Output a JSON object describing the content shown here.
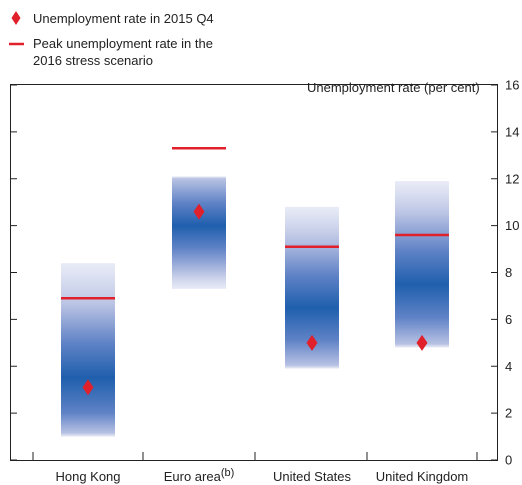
{
  "chart_data": {
    "type": "fan-range",
    "title": "",
    "ylabel": "Unemployment rate (per cent)",
    "xlabel": "",
    "ylim": [
      0,
      16
    ],
    "yticks": [
      0,
      2,
      4,
      6,
      8,
      10,
      12,
      14,
      16
    ],
    "y_axis_side": "right",
    "grid": false,
    "legend_position": "top-left",
    "legend": [
      {
        "name": "Unemployment rate in 2015 Q4",
        "marker": "diamond"
      },
      {
        "name": "Peak unemployment rate in the 2016 stress scenario",
        "marker": "line"
      }
    ],
    "categories": [
      "Hong Kong",
      "Euro area",
      "United States",
      "United Kingdom"
    ],
    "category_notes": [
      "",
      "(b)",
      "",
      ""
    ],
    "ranges": [
      {
        "low": 1.0,
        "high": 8.4,
        "dense_center": 3.5
      },
      {
        "low": 7.3,
        "high": 12.1,
        "dense_center": 10.0
      },
      {
        "low": 3.9,
        "high": 10.8,
        "dense_center": 6.5
      },
      {
        "low": 4.8,
        "high": 11.9,
        "dense_center": 7.5
      }
    ],
    "current_2015q4": [
      3.1,
      10.6,
      5.0,
      5.0
    ],
    "peak_stress_2016": [
      6.9,
      13.3,
      9.1,
      9.6
    ],
    "colors": {
      "band_dark": "#1f5fad",
      "band_light": "#dfe3f3",
      "marker_red": "#e0202a",
      "axis": "#222222"
    }
  }
}
